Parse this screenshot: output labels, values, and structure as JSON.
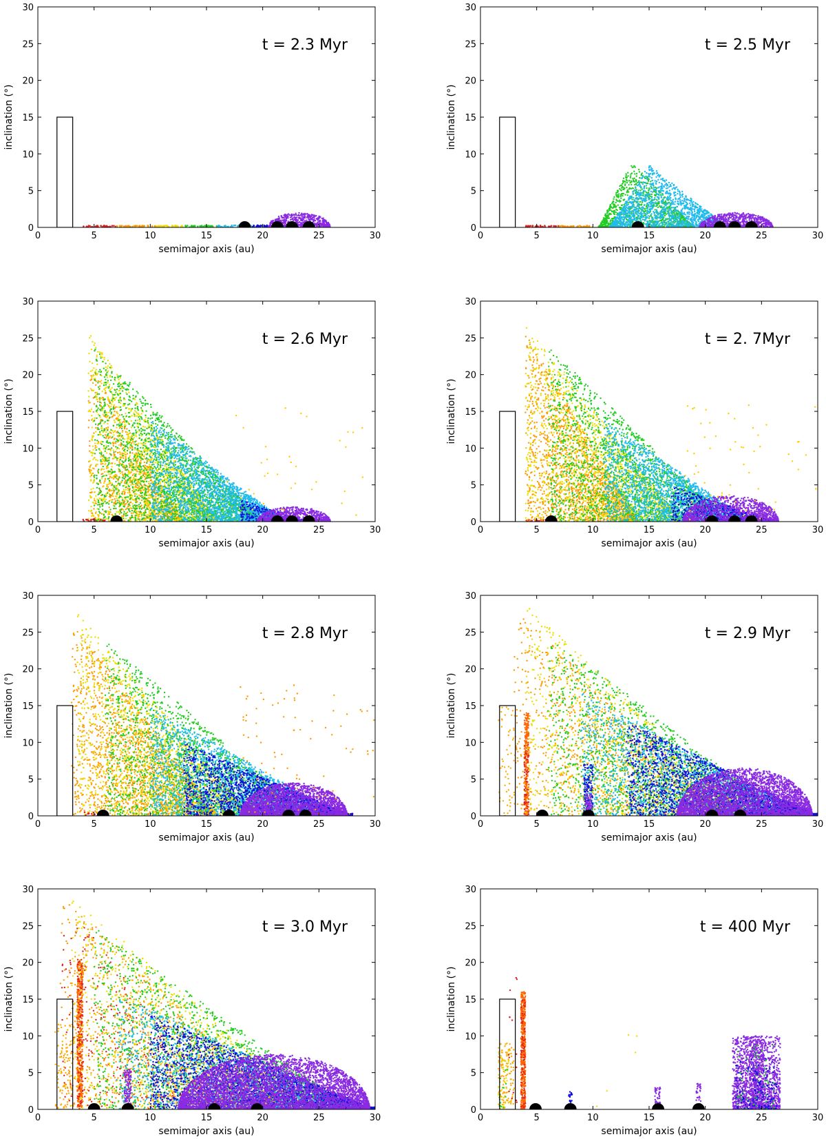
{
  "chart_data": [
    {
      "type": "scatter",
      "title": "t = 2.3 Myr",
      "xlabel": "semimajor axis (au)",
      "ylabel": "inclination (°)",
      "xlim": [
        0,
        30
      ],
      "ylim": [
        0,
        30
      ],
      "xticks": [
        "0",
        "5",
        "10",
        "15",
        "20",
        "25",
        "30"
      ],
      "yticks": [
        "0",
        "5",
        "10",
        "15",
        "20",
        "25",
        "30"
      ],
      "box": {
        "a_min": 1.7,
        "a_max": 3.1,
        "i_max": 15
      },
      "planets": [
        18.4,
        21.3,
        22.6,
        24.1
      ],
      "groups": [
        {
          "color": "#dd2222",
          "a": [
            4.0,
            7.0
          ],
          "imax": 0.25,
          "n": 40,
          "shape": "flat"
        },
        {
          "color": "#ff9900",
          "a": [
            7.0,
            10.5
          ],
          "imax": 0.25,
          "n": 40,
          "shape": "flat"
        },
        {
          "color": "#eedd00",
          "a": [
            10.5,
            13.0
          ],
          "imax": 0.25,
          "n": 40,
          "shape": "flat"
        },
        {
          "color": "#22cc22",
          "a": [
            13.0,
            16.0
          ],
          "imax": 0.25,
          "n": 40,
          "shape": "flat"
        },
        {
          "color": "#22bbee",
          "a": [
            16.0,
            19.0
          ],
          "imax": 0.3,
          "n": 40,
          "shape": "flat"
        },
        {
          "color": "#1111dd",
          "a": [
            19.0,
            20.5
          ],
          "imax": 0.3,
          "n": 30,
          "shape": "flat"
        },
        {
          "color": "#8a2be2",
          "a": [
            20.5,
            26.0
          ],
          "imax": 2.0,
          "n": 700,
          "shape": "tri"
        }
      ]
    },
    {
      "type": "scatter",
      "title": "t = 2.5 Myr",
      "xlabel": "semimajor axis (au)",
      "ylabel": "inclination (°)",
      "xlim": [
        0,
        30
      ],
      "ylim": [
        0,
        30
      ],
      "xticks": [
        "0",
        "5",
        "10",
        "15",
        "20",
        "25",
        "30"
      ],
      "yticks": [
        "0",
        "5",
        "10",
        "15",
        "20",
        "25",
        "30"
      ],
      "box": {
        "a_min": 1.7,
        "a_max": 3.1,
        "i_max": 15
      },
      "planets": [
        14.0,
        21.3,
        22.6,
        24.1
      ],
      "groups": [
        {
          "color": "#dd2222",
          "a": [
            4.0,
            7.0
          ],
          "imax": 0.25,
          "n": 40,
          "shape": "flat"
        },
        {
          "color": "#ff9900",
          "a": [
            7.0,
            10.0
          ],
          "imax": 0.25,
          "n": 40,
          "shape": "flat"
        },
        {
          "color": "#22cc22",
          "a": [
            10.5,
            19.0
          ],
          "imax": 9.0,
          "n": 1100,
          "shape": "tent",
          "peak": 13.5
        },
        {
          "color": "#22bbee",
          "a": [
            11.5,
            22.0
          ],
          "imax": 8.5,
          "n": 1700,
          "shape": "tent",
          "peak": 15.0
        },
        {
          "color": "#8a2be2",
          "a": [
            19.5,
            26.0
          ],
          "imax": 2.0,
          "n": 800,
          "shape": "tri"
        }
      ]
    },
    {
      "type": "scatter",
      "title": "t = 2.6 Myr",
      "xlabel": "semimajor axis (au)",
      "ylabel": "inclination (°)",
      "xlim": [
        0,
        30
      ],
      "ylim": [
        0,
        30
      ],
      "xticks": [
        "0",
        "5",
        "10",
        "15",
        "20",
        "25",
        "30"
      ],
      "yticks": [
        "0",
        "5",
        "10",
        "15",
        "20",
        "25",
        "30"
      ],
      "box": {
        "a_min": 1.7,
        "a_max": 3.1,
        "i_max": 15
      },
      "planets": [
        7.0,
        21.3,
        22.6,
        24.1
      ],
      "groups": [
        {
          "color": "#dd2222",
          "a": [
            4.0,
            6.0
          ],
          "imax": 0.3,
          "n": 30,
          "shape": "flat"
        },
        {
          "color": "#ff9900",
          "a": [
            4.5,
            13.0
          ],
          "imax": 22.0,
          "n": 900,
          "shape": "wedge"
        },
        {
          "color": "#eedd00",
          "a": [
            4.5,
            16.0
          ],
          "imax": 26.0,
          "n": 1800,
          "shape": "wedge"
        },
        {
          "color": "#22cc22",
          "a": [
            5.0,
            20.0
          ],
          "imax": 24.0,
          "n": 2400,
          "shape": "wedge"
        },
        {
          "color": "#22bbee",
          "a": [
            10.0,
            22.0
          ],
          "imax": 14.0,
          "n": 2200,
          "shape": "wedge"
        },
        {
          "color": "#1111dd",
          "a": [
            18.0,
            24.0
          ],
          "imax": 3.0,
          "n": 300,
          "shape": "wedge"
        },
        {
          "color": "#8a2be2",
          "a": [
            19.5,
            26.0
          ],
          "imax": 2.0,
          "n": 800,
          "shape": "tri"
        },
        {
          "color": "#ffcc00",
          "a": [
            16.0,
            29.0
          ],
          "imax": 16.0,
          "n": 40,
          "shape": "uniform"
        }
      ]
    },
    {
      "type": "scatter",
      "title": "t = 2. 7Myr",
      "xlabel": "semimajor axis (au)",
      "ylabel": "inclination (°)",
      "xlim": [
        0,
        30
      ],
      "ylim": [
        0,
        30
      ],
      "xticks": [
        "0",
        "5",
        "10",
        "15",
        "20",
        "25",
        "30"
      ],
      "yticks": [
        "0",
        "5",
        "10",
        "15",
        "20",
        "25",
        "30"
      ],
      "box": {
        "a_min": 1.7,
        "a_max": 3.1,
        "i_max": 15
      },
      "planets": [
        6.3,
        20.6,
        22.6,
        24.1
      ],
      "groups": [
        {
          "color": "#dd2222",
          "a": [
            4.0,
            6.0
          ],
          "imax": 0.3,
          "n": 30,
          "shape": "flat"
        },
        {
          "color": "#ff9900",
          "a": [
            4.0,
            14.0
          ],
          "imax": 26.0,
          "n": 1600,
          "shape": "wedge"
        },
        {
          "color": "#eedd00",
          "a": [
            4.0,
            18.0
          ],
          "imax": 27.0,
          "n": 1800,
          "shape": "wedge"
        },
        {
          "color": "#22cc22",
          "a": [
            6.0,
            22.0
          ],
          "imax": 24.0,
          "n": 2200,
          "shape": "wedge"
        },
        {
          "color": "#22bbee",
          "a": [
            11.0,
            24.0
          ],
          "imax": 14.0,
          "n": 2200,
          "shape": "wedge"
        },
        {
          "color": "#1111dd",
          "a": [
            17.0,
            26.0
          ],
          "imax": 5.0,
          "n": 700,
          "shape": "wedge"
        },
        {
          "color": "#8a2be2",
          "a": [
            18.0,
            26.5
          ],
          "imax": 3.5,
          "n": 1200,
          "shape": "tri"
        },
        {
          "color": "#ffcc00",
          "a": [
            18.0,
            30.0
          ],
          "imax": 16.0,
          "n": 60,
          "shape": "uniform"
        }
      ]
    },
    {
      "type": "scatter",
      "title": "t = 2.8 Myr",
      "xlabel": "semimajor axis (au)",
      "ylabel": "inclination (°)",
      "xlim": [
        0,
        30
      ],
      "ylim": [
        0,
        30
      ],
      "xticks": [
        "0",
        "5",
        "10",
        "15",
        "20",
        "25",
        "30"
      ],
      "yticks": [
        "0",
        "5",
        "10",
        "15",
        "20",
        "25",
        "30"
      ],
      "box": {
        "a_min": 1.7,
        "a_max": 3.1,
        "i_max": 15
      },
      "planets": [
        5.8,
        17.0,
        22.3,
        23.8
      ],
      "groups": [
        {
          "color": "#dd2222",
          "a": [
            4.0,
            6.0
          ],
          "imax": 0.5,
          "n": 30,
          "shape": "flat"
        },
        {
          "color": "#ff9900",
          "a": [
            3.0,
            16.0
          ],
          "imax": 27.0,
          "n": 1800,
          "shape": "wedge"
        },
        {
          "color": "#eedd00",
          "a": [
            3.5,
            19.0
          ],
          "imax": 28.0,
          "n": 1800,
          "shape": "wedge"
        },
        {
          "color": "#22cc22",
          "a": [
            6.0,
            24.0
          ],
          "imax": 24.0,
          "n": 2200,
          "shape": "wedge"
        },
        {
          "color": "#22bbee",
          "a": [
            10.0,
            27.0
          ],
          "imax": 15.0,
          "n": 2400,
          "shape": "wedge"
        },
        {
          "color": "#1111dd",
          "a": [
            13.0,
            28.0
          ],
          "imax": 10.0,
          "n": 2000,
          "shape": "wedge"
        },
        {
          "color": "#8a2be2",
          "a": [
            18.0,
            27.5
          ],
          "imax": 4.5,
          "n": 2500,
          "shape": "tri"
        },
        {
          "color": "#ff9900",
          "a": [
            18.0,
            30.0
          ],
          "imax": 18.0,
          "n": 80,
          "shape": "uniform"
        }
      ]
    },
    {
      "type": "scatter",
      "title": "t = 2.9 Myr",
      "xlabel": "semimajor axis (au)",
      "ylabel": "inclination (°)",
      "xlim": [
        0,
        30
      ],
      "ylim": [
        0,
        30
      ],
      "xticks": [
        "0",
        "5",
        "10",
        "15",
        "20",
        "25",
        "30"
      ],
      "yticks": [
        "0",
        "5",
        "10",
        "15",
        "20",
        "25",
        "30"
      ],
      "box": {
        "a_min": 1.7,
        "a_max": 3.1,
        "i_max": 15
      },
      "planets": [
        5.5,
        9.6,
        20.6,
        23.1
      ],
      "groups": [
        {
          "color": "#ff6600",
          "a": [
            3.9,
            4.3
          ],
          "imax": 14.0,
          "n": 250,
          "shape": "uniform"
        },
        {
          "color": "#dd2222",
          "a": [
            3.9,
            4.3
          ],
          "imax": 10.0,
          "n": 60,
          "shape": "uniform"
        },
        {
          "color": "#ffaa00",
          "a": [
            1.6,
            3.2
          ],
          "imax": 15.0,
          "n": 60,
          "shape": "uniform"
        },
        {
          "color": "#ff9900",
          "a": [
            3.0,
            22.0
          ],
          "imax": 29.0,
          "n": 1200,
          "shape": "wedge"
        },
        {
          "color": "#eedd00",
          "a": [
            4.0,
            24.0
          ],
          "imax": 29.0,
          "n": 1400,
          "shape": "wedge"
        },
        {
          "color": "#22cc22",
          "a": [
            6.0,
            27.0
          ],
          "imax": 25.0,
          "n": 2000,
          "shape": "wedge"
        },
        {
          "color": "#22bbee",
          "a": [
            9.0,
            29.0
          ],
          "imax": 17.0,
          "n": 2000,
          "shape": "wedge"
        },
        {
          "color": "#1111dd",
          "a": [
            9.2,
            10.0
          ],
          "imax": 7.0,
          "n": 120,
          "shape": "uniform"
        },
        {
          "color": "#1111dd",
          "a": [
            13.0,
            30.0
          ],
          "imax": 13.0,
          "n": 2200,
          "shape": "wedge"
        },
        {
          "color": "#8a2be2",
          "a": [
            17.5,
            29.5
          ],
          "imax": 6.5,
          "n": 3500,
          "shape": "tri"
        },
        {
          "color": "#8a2be2",
          "a": [
            9.3,
            9.9
          ],
          "imax": 3.0,
          "n": 80,
          "shape": "uniform"
        }
      ]
    },
    {
      "type": "scatter",
      "title": "t = 3.0 Myr",
      "xlabel": "semimajor axis (au)",
      "ylabel": "inclination (°)",
      "xlim": [
        0,
        30
      ],
      "ylim": [
        0,
        30
      ],
      "xticks": [
        "0",
        "5",
        "10",
        "15",
        "20",
        "25",
        "30"
      ],
      "yticks": [
        "0",
        "5",
        "10",
        "15",
        "20",
        "25",
        "30"
      ],
      "box": {
        "a_min": 1.7,
        "a_max": 3.1,
        "i_max": 15
      },
      "planets": [
        5.0,
        8.0,
        15.7,
        19.5
      ],
      "groups": [
        {
          "color": "#ff6600",
          "a": [
            3.5,
            4.0
          ],
          "imax": 20.0,
          "n": 500,
          "shape": "uniform"
        },
        {
          "color": "#dd2222",
          "a": [
            3.5,
            4.0
          ],
          "imax": 21.0,
          "n": 120,
          "shape": "uniform"
        },
        {
          "color": "#ffaa00",
          "a": [
            1.5,
            3.2
          ],
          "imax": 12.0,
          "n": 100,
          "shape": "uniform"
        },
        {
          "color": "#dd2222",
          "a": [
            2.0,
            16.0
          ],
          "imax": 30.0,
          "n": 400,
          "shape": "wedge"
        },
        {
          "color": "#ff9900",
          "a": [
            2.0,
            22.0
          ],
          "imax": 30.0,
          "n": 1200,
          "shape": "wedge"
        },
        {
          "color": "#eedd00",
          "a": [
            3.0,
            25.0
          ],
          "imax": 29.0,
          "n": 1400,
          "shape": "wedge"
        },
        {
          "color": "#22cc22",
          "a": [
            5.0,
            28.0
          ],
          "imax": 25.0,
          "n": 2000,
          "shape": "wedge"
        },
        {
          "color": "#22bbee",
          "a": [
            7.0,
            29.0
          ],
          "imax": 16.0,
          "n": 1800,
          "shape": "wedge"
        },
        {
          "color": "#1111dd",
          "a": [
            10.0,
            30.0
          ],
          "imax": 13.0,
          "n": 2500,
          "shape": "wedge"
        },
        {
          "color": "#8a2be2",
          "a": [
            7.7,
            8.3
          ],
          "imax": 5.5,
          "n": 120,
          "shape": "uniform"
        },
        {
          "color": "#8a2be2",
          "a": [
            12.5,
            29.5
          ],
          "imax": 7.5,
          "n": 5000,
          "shape": "tri"
        }
      ]
    },
    {
      "type": "scatter",
      "title": "t = 400 Myr",
      "xlabel": "semimajor axis (au)",
      "ylabel": "inclination (°)",
      "xlim": [
        0,
        30
      ],
      "ylim": [
        0,
        30
      ],
      "xticks": [
        "0",
        "5",
        "10",
        "15",
        "20",
        "25",
        "30"
      ],
      "yticks": [
        "0",
        "5",
        "10",
        "15",
        "20",
        "25",
        "30"
      ],
      "box": {
        "a_min": 1.7,
        "a_max": 3.1,
        "i_max": 15
      },
      "planets": [
        4.9,
        8.0,
        15.8,
        19.4
      ],
      "groups": [
        {
          "color": "#ff6600",
          "a": [
            3.6,
            4.0
          ],
          "imax": 16.0,
          "n": 500,
          "shape": "uniform"
        },
        {
          "color": "#dd2222",
          "a": [
            3.6,
            4.0
          ],
          "imax": 15.0,
          "n": 80,
          "shape": "uniform"
        },
        {
          "color": "#ffaa00",
          "a": [
            1.6,
            3.0
          ],
          "imax": 9.0,
          "n": 120,
          "shape": "uniform"
        },
        {
          "color": "#eedd00",
          "a": [
            1.6,
            2.6
          ],
          "imax": 8.0,
          "n": 40,
          "shape": "uniform"
        },
        {
          "color": "#22cc22",
          "a": [
            1.6,
            2.4
          ],
          "imax": 6.0,
          "n": 15,
          "shape": "uniform"
        },
        {
          "color": "#dd2222",
          "a": [
            2.5,
            3.3
          ],
          "imax": 18.5,
          "n": 15,
          "shape": "uniform"
        },
        {
          "color": "#1111dd",
          "a": [
            7.8,
            8.2
          ],
          "imax": 2.5,
          "n": 25,
          "shape": "uniform"
        },
        {
          "color": "#8a2be2",
          "a": [
            15.5,
            16.0
          ],
          "imax": 3.0,
          "n": 50,
          "shape": "uniform"
        },
        {
          "color": "#8a2be2",
          "a": [
            19.2,
            19.6
          ],
          "imax": 3.5,
          "n": 35,
          "shape": "uniform"
        },
        {
          "color": "#8a2be2",
          "a": [
            22.0,
            27.0
          ],
          "imax": 10.0,
          "n": 1800,
          "shape": "two"
        },
        {
          "color": "#1111dd",
          "a": [
            22.5,
            26.5
          ],
          "imax": 7.0,
          "n": 150,
          "shape": "two"
        },
        {
          "color": "#22cc22",
          "a": [
            22.5,
            26.0
          ],
          "imax": 9.0,
          "n": 60,
          "shape": "two"
        },
        {
          "color": "#eedd00",
          "a": [
            10.0,
            14.0
          ],
          "imax": 17.0,
          "n": 5,
          "shape": "uniform"
        }
      ]
    }
  ]
}
